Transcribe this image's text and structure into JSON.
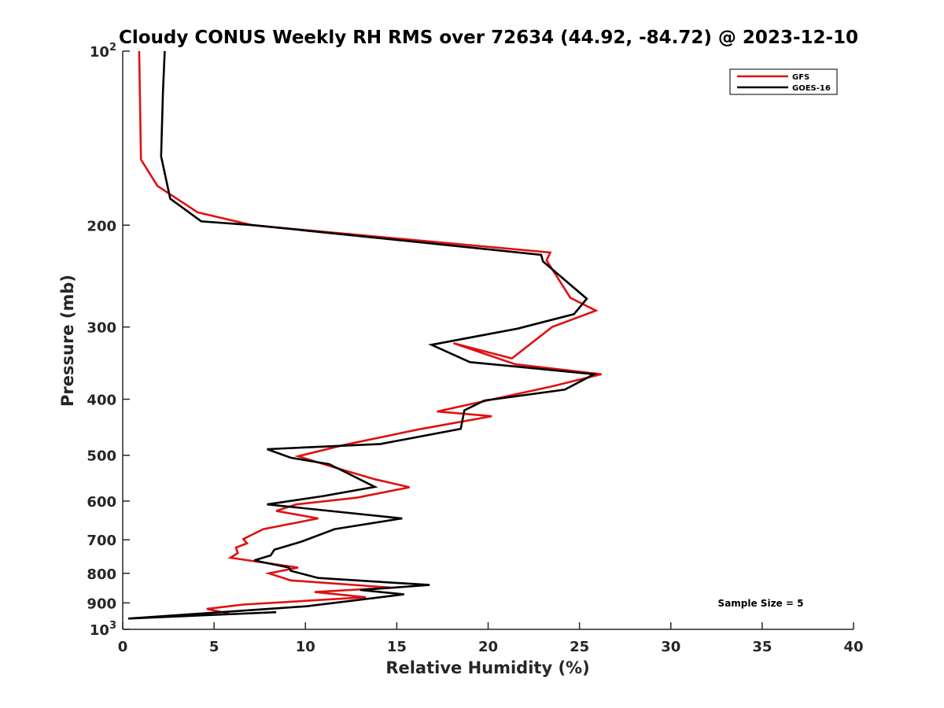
{
  "chart_data": {
    "type": "line",
    "title": "Cloudy CONUS Weekly RH RMS over 72634 (44.92, -84.72) @ 2023-12-10",
    "xlabel": "Relative Humidity (%)",
    "ylabel": "Pressure (mb)",
    "xlim": [
      0,
      40
    ],
    "ylim": [
      100,
      1000
    ],
    "y_scale": "log",
    "y_reversed": true,
    "x_ticks": [
      "0",
      "5",
      "10",
      "15",
      "20",
      "25",
      "30",
      "35",
      "40"
    ],
    "y_ticks": [
      {
        "value": 100,
        "base": "10",
        "exp": "2"
      },
      {
        "value": 200,
        "label": "200"
      },
      {
        "value": 300,
        "label": "300"
      },
      {
        "value": 400,
        "label": "400"
      },
      {
        "value": 500,
        "label": "500"
      },
      {
        "value": 600,
        "label": "600"
      },
      {
        "value": 700,
        "label": "700"
      },
      {
        "value": 800,
        "label": "800"
      },
      {
        "value": 900,
        "label": "900"
      },
      {
        "value": 1000,
        "base": "10",
        "exp": "3"
      }
    ],
    "legend_position": "top-right",
    "note": "Sample Size = 5",
    "series": [
      {
        "name": "GFS",
        "color": "#e01010",
        "x": [
          0.9,
          1.0,
          1.9,
          4.1,
          7.1,
          23.4,
          23.2,
          24.5,
          25.9,
          23.5,
          21.3,
          18.1,
          21.5,
          26.2,
          23.5,
          17.2,
          20.2,
          16.2,
          12.1,
          9.6,
          11.6,
          13.8,
          15.7,
          12.8,
          9.5,
          8.4,
          10.7,
          7.7,
          6.6,
          6.8,
          6.2,
          6.3,
          5.9,
          9.6,
          8.0,
          9.2,
          14.7,
          10.5,
          13.3,
          6.6,
          4.6,
          5.8
        ],
        "y": [
          100,
          154,
          171,
          190,
          200,
          223,
          230,
          267,
          281,
          300,
          340,
          320,
          348,
          362,
          380,
          420,
          428,
          451,
          480,
          502,
          525,
          550,
          568,
          592,
          608,
          624,
          643,
          671,
          698,
          710,
          722,
          738,
          752,
          782,
          800,
          823,
          847,
          862,
          880,
          906,
          922,
          939
        ]
      },
      {
        "name": "GOES-16",
        "color": "#000000",
        "x": [
          2.3,
          2.2,
          2.1,
          2.6,
          4.3,
          7.2,
          22.9,
          23.0,
          25.4,
          24.7,
          21.6,
          16.9,
          19.0,
          25.8,
          24.2,
          19.8,
          18.7,
          18.5,
          14.1,
          7.9,
          9.2,
          11.3,
          12.3,
          13.8,
          11.0,
          7.9,
          15.3,
          11.6,
          9.8,
          8.3,
          8.1,
          7.2,
          9.1,
          9.2,
          10.7,
          16.8,
          13.0,
          15.4,
          10.1,
          0.3,
          8.4
        ],
        "y": [
          100,
          118,
          152,
          180,
          197,
          200,
          225,
          231,
          268,
          285,
          302,
          322,
          345,
          362,
          385,
          402,
          418,
          450,
          478,
          488,
          505,
          518,
          537,
          567,
          588,
          608,
          643,
          671,
          705,
          728,
          745,
          760,
          782,
          792,
          815,
          838,
          855,
          870,
          912,
          958,
          934
        ]
      }
    ]
  }
}
